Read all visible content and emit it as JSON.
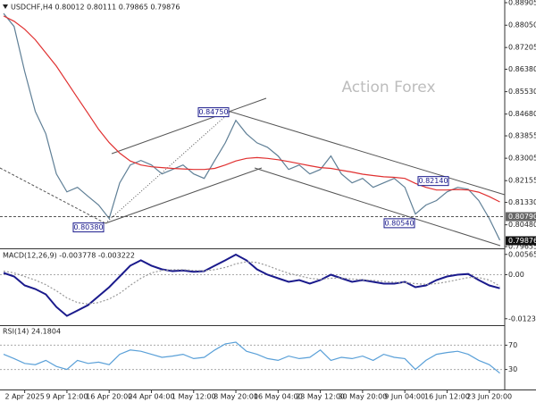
{
  "chart_data": [
    {
      "type": "line",
      "title": "USDCHF,H4  0.80012 0.80111 0.79865 0.79876",
      "watermark": "Action Forex",
      "categories": [
        null,
        null,
        "2 Apr 2025",
        null,
        null,
        null,
        "9 Apr 12:00",
        null,
        null,
        null,
        "16 Apr 20:00",
        null,
        null,
        null,
        "24 Apr 04:00",
        null,
        null,
        null,
        "1 May 12:00",
        null,
        null,
        null,
        "8 May 20:00",
        null,
        null,
        null,
        "16 May 04:00",
        null,
        null,
        null,
        "23 May 12:00",
        null,
        null,
        null,
        "30 May 20:00",
        null,
        null,
        null,
        "9 Jun 04:00",
        null,
        null,
        null,
        "16 Jun 12:00",
        null,
        null,
        null,
        "23 Jun 20:00",
        null
      ],
      "series": [
        {
          "color": "#5f7f96",
          "values": [
            0.885,
            0.88,
            0.863,
            0.8478,
            0.8393,
            0.8241,
            0.8173,
            0.819,
            0.8156,
            0.8123,
            0.8072,
            0.8207,
            0.8275,
            0.8292,
            0.8275,
            0.8241,
            0.8258,
            0.8275,
            0.8241,
            0.8224,
            0.8292,
            0.8359,
            0.8444,
            0.8393,
            0.8359,
            0.8342,
            0.8309,
            0.8258,
            0.8275,
            0.8241,
            0.8258,
            0.8309,
            0.8241,
            0.8207,
            0.8224,
            0.819,
            0.8207,
            0.8224,
            0.819,
            0.8089,
            0.8123,
            0.814,
            0.8173,
            0.819,
            0.8183,
            0.814,
            0.8072,
            0.799
          ]
        },
        {
          "color": "#e03030",
          "values": [
            0.884,
            0.882,
            0.879,
            0.875,
            0.87,
            0.865,
            0.859,
            0.853,
            0.847,
            0.841,
            0.836,
            0.832,
            0.829,
            0.8275,
            0.8268,
            0.8265,
            0.8262,
            0.826,
            0.8258,
            0.8258,
            0.8262,
            0.8275,
            0.829,
            0.83,
            0.8303,
            0.83,
            0.8295,
            0.8288,
            0.828,
            0.8272,
            0.8265,
            0.8262,
            0.8255,
            0.8248,
            0.824,
            0.8235,
            0.823,
            0.8228,
            0.8224,
            0.8205,
            0.819,
            0.818,
            0.818,
            0.8182,
            0.818,
            0.8172,
            0.8155,
            0.8135
          ]
        }
      ],
      "ylim": [
        0.79655,
        0.88905
      ],
      "yticks": [
        0.88905,
        {
          "value": 0.8805,
          "label": "0.88050"
        },
        0.87205,
        {
          "value": 0.8638,
          "label": "0.86380"
        },
        {
          "value": 0.8553,
          "label": "0.85530"
        },
        {
          "value": 0.8468,
          "label": "0.84680"
        },
        0.83855,
        0.83005,
        0.82155,
        {
          "value": 0.8133,
          "label": "0.81330"
        },
        {
          "value": 0.8048,
          "label": "0.80480"
        },
        0.79655
      ],
      "annotations": [
        {
          "value": 0.8475,
          "label": "0.84750"
        },
        {
          "value": 0.8038,
          "label": "0.80380"
        },
        {
          "value": 0.8054,
          "label": "0.80540"
        },
        {
          "value": 0.8214,
          "label": "0.82140"
        }
      ],
      "levels": [
        {
          "value": 0.8079,
          "label": "0.80790"
        }
      ],
      "last_price": {
        "value": 0.79876,
        "label": "0.79876"
      }
    },
    {
      "type": "line",
      "title": "MACD(12,26,9) -0.003778 -0.003222",
      "series": [
        {
          "color": "#1a1a8c",
          "values": [
            0.0005,
            -0.0005,
            -0.003,
            -0.004,
            -0.0055,
            -0.009,
            -0.0115,
            -0.01,
            -0.0085,
            -0.006,
            -0.0035,
            -0.0005,
            0.0025,
            0.004,
            0.0025,
            0.0015,
            0.001,
            0.0012,
            0.0008,
            0.001,
            0.0025,
            0.004,
            0.0056,
            0.004,
            0.0015,
            0,
            -0.001,
            -0.002,
            -0.0015,
            -0.0025,
            -0.0015,
            0,
            -0.001,
            -0.002,
            -0.0015,
            -0.002,
            -0.0025,
            -0.0025,
            -0.002,
            -0.0035,
            -0.003,
            -0.0015,
            -0.0005,
            0,
            0.0002,
            -0.0015,
            -0.003,
            -0.0038
          ]
        },
        {
          "color": "#999999",
          "dotted": true,
          "values": [
            0.001,
            0.0005,
            -0.0005,
            -0.0015,
            -0.0028,
            -0.0045,
            -0.0065,
            -0.0078,
            -0.0082,
            -0.0078,
            -0.0068,
            -0.0052,
            -0.003,
            -0.001,
            0.0005,
            0.0012,
            0.0014,
            0.0014,
            0.0012,
            0.0011,
            0.0014,
            0.002,
            0.003,
            0.0036,
            0.0034,
            0.0025,
            0.0014,
            0.0004,
            -0.0003,
            -0.001,
            -0.0013,
            -0.001,
            -0.0009,
            -0.0012,
            -0.0014,
            -0.0016,
            -0.0019,
            -0.0021,
            -0.0022,
            -0.0025,
            -0.0027,
            -0.0025,
            -0.002,
            -0.0014,
            -0.0008,
            -0.0008,
            -0.0015,
            -0.0032
          ]
        }
      ],
      "ylim": [
        -0.0136,
        0.0066
      ],
      "yticks": [
        0.005659,
        {
          "value": 0,
          "label": "0.00"
        },
        -0.012301
      ]
    },
    {
      "type": "line",
      "title": "RSI(14) 24.1804",
      "series": [
        {
          "color": "#5aa0d8",
          "values": [
            55,
            48,
            40,
            38,
            45,
            35,
            30,
            45,
            40,
            42,
            38,
            55,
            62,
            60,
            55,
            50,
            52,
            55,
            48,
            50,
            62,
            72,
            75,
            60,
            55,
            48,
            45,
            52,
            48,
            50,
            62,
            45,
            50,
            48,
            52,
            45,
            55,
            50,
            48,
            30,
            45,
            55,
            58,
            60,
            55,
            45,
            38,
            24
          ]
        }
      ],
      "ylim": [
        0,
        100
      ],
      "yticks": [
        70,
        30
      ],
      "dotted_ticks": true
    }
  ]
}
